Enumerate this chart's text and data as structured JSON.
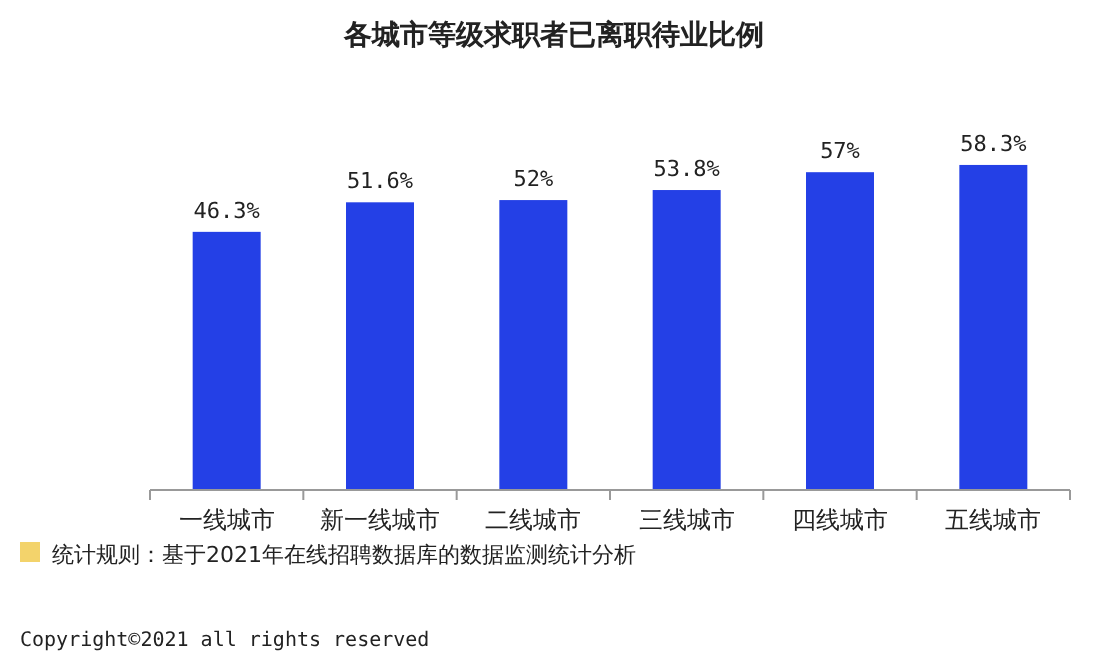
{
  "chart_data": {
    "type": "bar",
    "title": "各城市等级求职者已离职待业比例",
    "categories": [
      "一线城市",
      "新一线城市",
      "二线城市",
      "三线城市",
      "四线城市",
      "五线城市"
    ],
    "values": [
      46.3,
      51.6,
      52,
      53.8,
      57,
      58.3
    ],
    "value_labels": [
      "46.3%",
      "51.6%",
      "52%",
      "53.8%",
      "57%",
      "58.3%"
    ],
    "color": "#2440e6",
    "annotations": [
      "统计规则：基于2021年在线招聘数据库的数据监测统计分析",
      "Copyright©2021 all rights reserved"
    ]
  }
}
